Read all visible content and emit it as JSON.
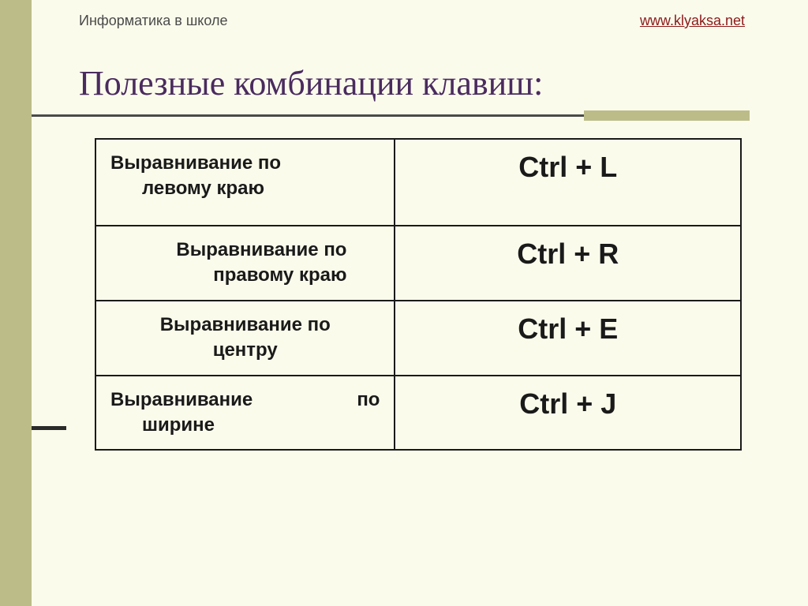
{
  "header": {
    "left_text": "Информатика в школе",
    "right_link": "www.klyaksa.net"
  },
  "title": "Полезные комбинации клавиш:",
  "table": {
    "type": "table",
    "columns": [
      "description",
      "shortcut"
    ],
    "background_color": "#fbfbec",
    "border_color": "#1a1a1a",
    "border_width": 2,
    "desc_fontsize": 24,
    "key_fontsize": 36,
    "text_color": "#1a1a1a",
    "rows": [
      {
        "desc_line1": "Выравнивание по",
        "desc_line2": "левому краю",
        "shortcut": "Ctrl + L"
      },
      {
        "desc_line1": "Выравнивание по",
        "desc_line2": "правому краю",
        "shortcut": "Ctrl + R"
      },
      {
        "desc_line1": "Выравнивание по",
        "desc_line2": "центру",
        "shortcut": "Ctrl + E"
      },
      {
        "desc_word1": "Выравнивание",
        "desc_word2": "по",
        "desc_line2": "ширине",
        "shortcut": "Ctrl + J"
      }
    ]
  },
  "styling": {
    "page_background": "#fbfbec",
    "stripe_color": "#bcbc88",
    "title_color": "#4a2b5f",
    "title_fontsize": 44,
    "header_fontsize": 18,
    "header_left_color": "#4a4a4a",
    "header_right_color": "#8b1a1a",
    "hr_color": "#4a4a4a"
  }
}
